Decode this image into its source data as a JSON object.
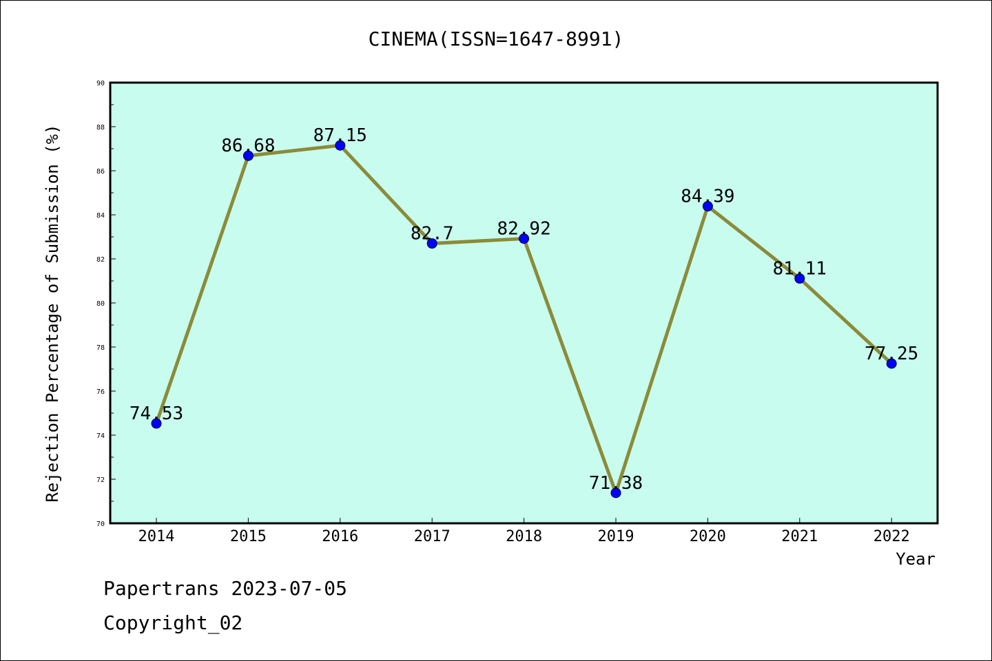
{
  "chart_data": {
    "type": "line",
    "title": "CINEMA(ISSN=1647-8991)",
    "xlabel": "Year",
    "ylabel": "Rejection Percentage of Submission (%)",
    "categories": [
      "2014",
      "2015",
      "2016",
      "2017",
      "2018",
      "2019",
      "2020",
      "2021",
      "2022"
    ],
    "values": [
      74.53,
      86.68,
      87.15,
      82.7,
      82.92,
      71.38,
      84.39,
      81.11,
      77.25
    ],
    "data_labels": [
      "74.53",
      "86.68",
      "87.15",
      "82.7",
      "82.92",
      "71.38",
      "84.39",
      "81.11",
      "77.25"
    ],
    "ylim": [
      70,
      90
    ],
    "yticks": [
      70,
      72,
      74,
      76,
      78,
      80,
      82,
      84,
      86,
      88,
      90
    ],
    "grid": false,
    "colors": {
      "plot_background": "#c8fcee",
      "line": "#8b8b3a",
      "marker": "#0000ff"
    }
  },
  "footer": {
    "line1": "Papertrans 2023-07-05",
    "line2": "Copyright_02"
  }
}
